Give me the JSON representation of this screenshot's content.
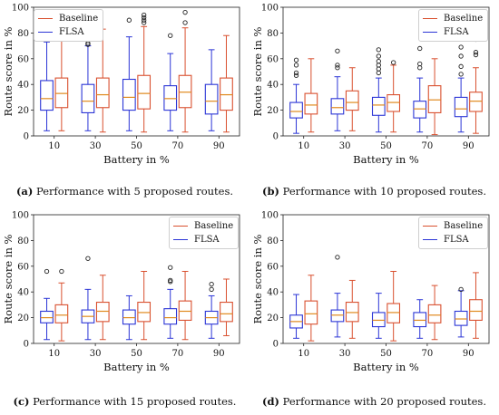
{
  "colors": {
    "baseline": "#d9502f",
    "flsa": "#2b35d6",
    "median": "#e08a1e",
    "axis": "#222222"
  },
  "chart_data": [
    {
      "type": "box",
      "caption_label": "(a)",
      "caption_text": "Performance with 5 proposed routes.",
      "xlabel": "Battery in %",
      "ylabel": "Route score in %",
      "categories": [
        "10",
        "30",
        "50",
        "70",
        "90"
      ],
      "ylim": [
        0,
        100
      ],
      "yticks": [
        "0",
        "20",
        "40",
        "60",
        "80",
        "100"
      ],
      "legend": {
        "position": "top-left",
        "entries": [
          "Baseline",
          "FLSA"
        ]
      },
      "series": [
        {
          "name": "FLSA",
          "color_key": "flsa",
          "boxes": [
            {
              "low": 4,
              "q1": 20,
              "median": 29,
              "q3": 43,
              "high": 73,
              "outliers": []
            },
            {
              "low": 4,
              "q1": 18,
              "median": 27,
              "q3": 40,
              "high": 70,
              "outliers": [
                71,
                72
              ]
            },
            {
              "low": 4,
              "q1": 20,
              "median": 30,
              "q3": 44,
              "high": 77,
              "outliers": [
                90
              ]
            },
            {
              "low": 4,
              "q1": 20,
              "median": 29,
              "q3": 39,
              "high": 64,
              "outliers": [
                78
              ]
            },
            {
              "low": 4,
              "q1": 17,
              "median": 27,
              "q3": 40,
              "high": 67,
              "outliers": []
            }
          ]
        },
        {
          "name": "Baseline",
          "color_key": "baseline",
          "boxes": [
            {
              "low": 4,
              "q1": 22,
              "median": 33,
              "q3": 45,
              "high": 77,
              "outliers": []
            },
            {
              "low": 3,
              "q1": 22,
              "median": 32,
              "q3": 45,
              "high": 83,
              "outliers": []
            },
            {
              "low": 3,
              "q1": 21,
              "median": 33,
              "q3": 47,
              "high": 85,
              "outliers": [
                88,
                90,
                92,
                94
              ]
            },
            {
              "low": 3,
              "q1": 22,
              "median": 34,
              "q3": 47,
              "high": 84,
              "outliers": [
                88,
                96
              ]
            },
            {
              "low": 3,
              "q1": 20,
              "median": 32,
              "q3": 45,
              "high": 78,
              "outliers": []
            }
          ]
        }
      ]
    },
    {
      "type": "box",
      "caption_label": "(b)",
      "caption_text": "Performance with 10 proposed routes.",
      "xlabel": "Battery in %",
      "ylabel": "Route score in %",
      "categories": [
        "10",
        "30",
        "50",
        "70",
        "90"
      ],
      "ylim": [
        0,
        100
      ],
      "yticks": [
        "0",
        "20",
        "40",
        "60",
        "80",
        "100"
      ],
      "legend": {
        "position": "top-right",
        "entries": [
          "Baseline",
          "FLSA"
        ]
      },
      "series": [
        {
          "name": "FLSA",
          "color_key": "flsa",
          "boxes": [
            {
              "low": 2,
              "q1": 14,
              "median": 19,
              "q3": 26,
              "high": 40,
              "outliers": [
                47,
                49,
                55,
                59
              ]
            },
            {
              "low": 4,
              "q1": 17,
              "median": 22,
              "q3": 29,
              "high": 46,
              "outliers": [
                53,
                55,
                66
              ]
            },
            {
              "low": 3,
              "q1": 16,
              "median": 24,
              "q3": 30,
              "high": 45,
              "outliers": [
                49,
                52,
                55,
                58,
                62,
                67
              ]
            },
            {
              "low": 3,
              "q1": 14,
              "median": 21,
              "q3": 27,
              "high": 45,
              "outliers": [
                53,
                56,
                68
              ]
            },
            {
              "low": 3,
              "q1": 15,
              "median": 21,
              "q3": 30,
              "high": 45,
              "outliers": [
                48,
                54,
                62,
                69
              ]
            }
          ]
        },
        {
          "name": "Baseline",
          "color_key": "baseline",
          "boxes": [
            {
              "low": 3,
              "q1": 17,
              "median": 24,
              "q3": 33,
              "high": 60,
              "outliers": []
            },
            {
              "low": 4,
              "q1": 20,
              "median": 26,
              "q3": 35,
              "high": 53,
              "outliers": []
            },
            {
              "low": 3,
              "q1": 19,
              "median": 26,
              "q3": 32,
              "high": 55,
              "outliers": [
                57
              ]
            },
            {
              "low": 1,
              "q1": 18,
              "median": 28,
              "q3": 39,
              "high": 60,
              "outliers": []
            },
            {
              "low": 2,
              "q1": 19,
              "median": 27,
              "q3": 34,
              "high": 53,
              "outliers": [
                63,
                65,
                75
              ]
            }
          ]
        }
      ]
    },
    {
      "type": "box",
      "caption_label": "(c)",
      "caption_text": "Performance with 15 proposed routes.",
      "xlabel": "Battery in %",
      "ylabel": "Route score in %",
      "categories": [
        "10",
        "30",
        "50",
        "70",
        "90"
      ],
      "ylim": [
        0,
        100
      ],
      "yticks": [
        "0",
        "20",
        "40",
        "60",
        "80",
        "100"
      ],
      "legend": {
        "position": "top-right",
        "entries": [
          "Baseline",
          "FLSA"
        ]
      },
      "series": [
        {
          "name": "FLSA",
          "color_key": "flsa",
          "boxes": [
            {
              "low": 3,
              "q1": 16,
              "median": 20,
              "q3": 25,
              "high": 35,
              "outliers": [
                56
              ]
            },
            {
              "low": 3,
              "q1": 16,
              "median": 21,
              "q3": 26,
              "high": 42,
              "outliers": [
                66
              ]
            },
            {
              "low": 3,
              "q1": 15,
              "median": 20,
              "q3": 26,
              "high": 37,
              "outliers": []
            },
            {
              "low": 4,
              "q1": 15,
              "median": 20,
              "q3": 27,
              "high": 42,
              "outliers": [
                48,
                49,
                59
              ]
            },
            {
              "low": 4,
              "q1": 15,
              "median": 20,
              "q3": 25,
              "high": 37,
              "outliers": [
                42,
                46
              ]
            }
          ]
        },
        {
          "name": "Baseline",
          "color_key": "baseline",
          "boxes": [
            {
              "low": 2,
              "q1": 16,
              "median": 22,
              "q3": 30,
              "high": 47,
              "outliers": [
                56
              ]
            },
            {
              "low": 3,
              "q1": 17,
              "median": 25,
              "q3": 32,
              "high": 53,
              "outliers": []
            },
            {
              "low": 3,
              "q1": 17,
              "median": 24,
              "q3": 32,
              "high": 56,
              "outliers": []
            },
            {
              "low": 3,
              "q1": 18,
              "median": 25,
              "q3": 33,
              "high": 56,
              "outliers": []
            },
            {
              "low": 6,
              "q1": 17,
              "median": 23,
              "q3": 32,
              "high": 50,
              "outliers": []
            }
          ]
        }
      ]
    },
    {
      "type": "box",
      "caption_label": "(d)",
      "caption_text": "Performance with 20 proposed routes.",
      "xlabel": "Battery in %",
      "ylabel": "Route score in %",
      "categories": [
        "10",
        "30",
        "50",
        "70",
        "90"
      ],
      "ylim": [
        0,
        100
      ],
      "yticks": [
        "0",
        "20",
        "40",
        "60",
        "80",
        "100"
      ],
      "legend": {
        "position": "top-right",
        "entries": [
          "Baseline",
          "FLSA"
        ]
      },
      "series": [
        {
          "name": "FLSA",
          "color_key": "flsa",
          "boxes": [
            {
              "low": 4,
              "q1": 12,
              "median": 17,
              "q3": 22,
              "high": 38,
              "outliers": []
            },
            {
              "low": 5,
              "q1": 17,
              "median": 22,
              "q3": 26,
              "high": 39,
              "outliers": [
                67
              ]
            },
            {
              "low": 4,
              "q1": 13,
              "median": 18,
              "q3": 24,
              "high": 39,
              "outliers": []
            },
            {
              "low": 4,
              "q1": 13,
              "median": 18,
              "q3": 24,
              "high": 34,
              "outliers": []
            },
            {
              "low": 5,
              "q1": 14,
              "median": 19,
              "q3": 25,
              "high": 41,
              "outliers": [
                42
              ]
            }
          ]
        },
        {
          "name": "Baseline",
          "color_key": "baseline",
          "boxes": [
            {
              "low": 2,
              "q1": 15,
              "median": 23,
              "q3": 33,
              "high": 53,
              "outliers": []
            },
            {
              "low": 4,
              "q1": 17,
              "median": 24,
              "q3": 32,
              "high": 49,
              "outliers": []
            },
            {
              "low": 2,
              "q1": 16,
              "median": 24,
              "q3": 31,
              "high": 56,
              "outliers": []
            },
            {
              "low": 3,
              "q1": 16,
              "median": 22,
              "q3": 30,
              "high": 45,
              "outliers": []
            },
            {
              "low": 4,
              "q1": 18,
              "median": 25,
              "q3": 34,
              "high": 55,
              "outliers": []
            }
          ]
        }
      ]
    }
  ]
}
